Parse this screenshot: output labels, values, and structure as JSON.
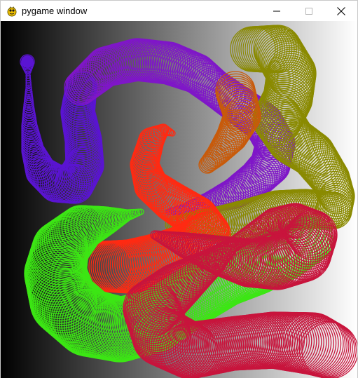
{
  "window": {
    "title": "pygame window",
    "icon": "pygame-snake-icon",
    "controls": {
      "minimize_icon": "minimize-icon",
      "maximize_icon": "maximize-icon",
      "close_icon": "close-icon"
    }
  },
  "canvas": {
    "background": {
      "type": "horizontal-gradient",
      "from": "#000000",
      "to": "#ffffff"
    },
    "trail_colors": {
      "blue_violet": "#5a14d2",
      "purple": "#7f16c8",
      "olive": "#8a8a00",
      "orange": "#c85a0a",
      "red": "#ff2a12",
      "lime": "#3ce614",
      "crimson": "#c8143c"
    }
  }
}
